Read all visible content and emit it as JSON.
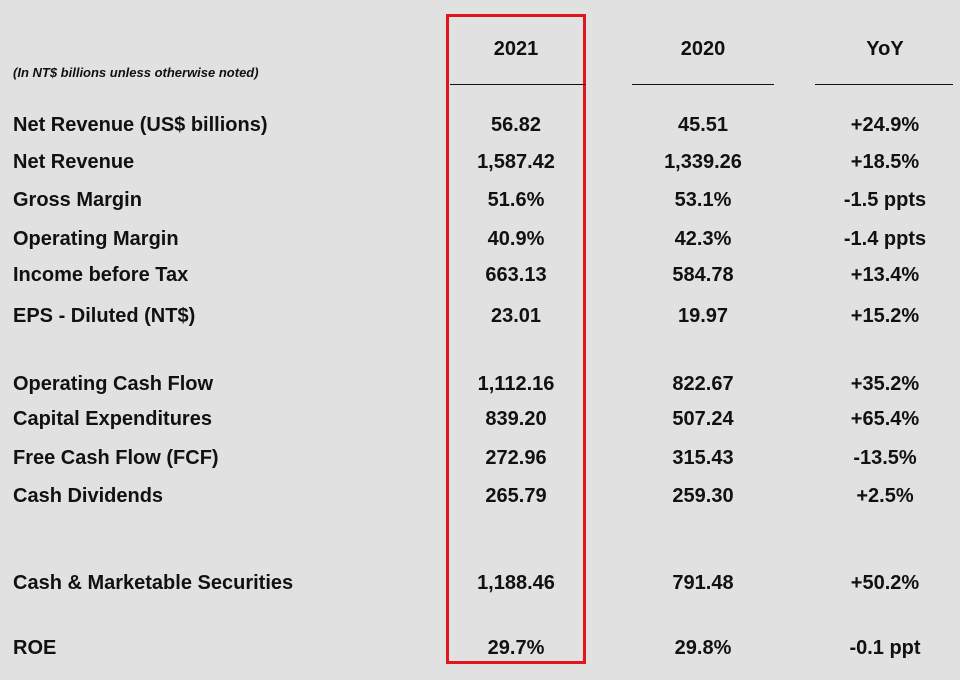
{
  "note": "(In NT$ billions unless otherwise noted)",
  "columns": {
    "y2021": "2021",
    "y2020": "2020",
    "yoy": "YoY"
  },
  "rows": [
    {
      "label": "Net Revenue (US$ billions)",
      "y2021": "56.82",
      "y2020": "45.51",
      "yoy": "+24.9%"
    },
    {
      "label": "Net Revenue",
      "y2021": "1,587.42",
      "y2020": "1,339.26",
      "yoy": "+18.5%"
    },
    {
      "label": "Gross Margin",
      "y2021": "51.6%",
      "y2020": "53.1%",
      "yoy": "-1.5 ppts"
    },
    {
      "label": "Operating Margin",
      "y2021": "40.9%",
      "y2020": "42.3%",
      "yoy": "-1.4 ppts"
    },
    {
      "label": "Income before Tax",
      "y2021": "663.13",
      "y2020": "584.78",
      "yoy": "+13.4%"
    },
    {
      "label": "EPS - Diluted (NT$)",
      "y2021": "23.01",
      "y2020": "19.97",
      "yoy": "+15.2%"
    },
    {
      "label": "Operating Cash Flow",
      "y2021": "1,112.16",
      "y2020": "822.67",
      "yoy": "+35.2%"
    },
    {
      "label": "Capital Expenditures",
      "y2021": "839.20",
      "y2020": "507.24",
      "yoy": "+65.4%"
    },
    {
      "label": "Free Cash Flow (FCF)",
      "y2021": "272.96",
      "y2020": "315.43",
      "yoy": "-13.5%"
    },
    {
      "label": "Cash Dividends",
      "y2021": "265.79",
      "y2020": "259.30",
      "yoy": "+2.5%"
    },
    {
      "label": "Cash & Marketable Securities",
      "y2021": "1,188.46",
      "y2020": "791.48",
      "yoy": "+50.2%"
    },
    {
      "label": "ROE",
      "y2021": "29.7%",
      "y2020": "29.8%",
      "yoy": "-0.1 ppt"
    }
  ],
  "colors": {
    "highlight": "#e0161c",
    "background": "#e1e1e1",
    "text": "#111111"
  }
}
